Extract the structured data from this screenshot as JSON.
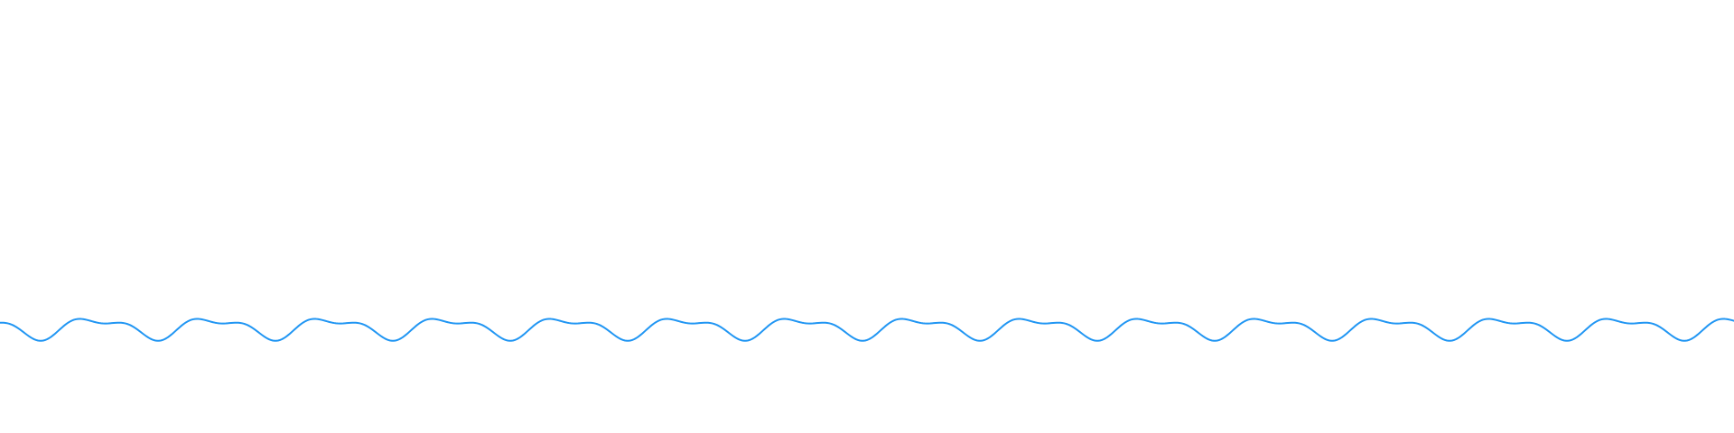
{
  "wave": {
    "stroke_color": "#2196f3",
    "fill": "none"
  }
}
